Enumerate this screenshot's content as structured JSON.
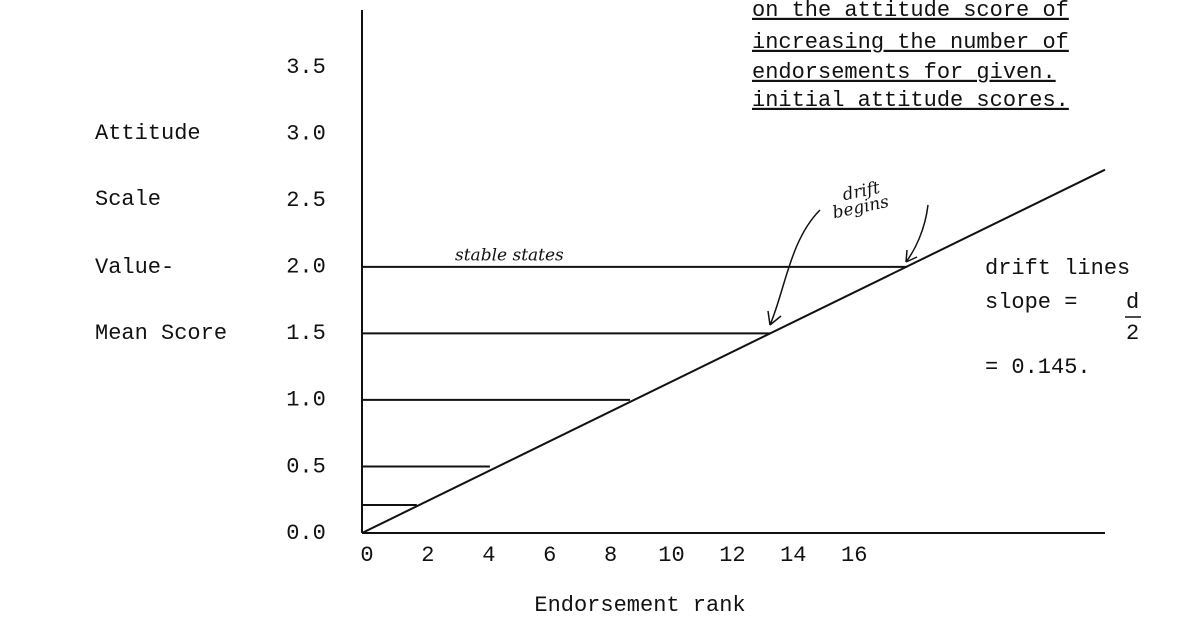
{
  "chart_data": {
    "type": "line",
    "title_lines": [
      "on the attitude score of",
      "increasing the number of",
      "endorsements for given.",
      "initial attitude scores."
    ],
    "y_label_lines": [
      "Attitude",
      "Scale",
      "Value-",
      "Mean Score"
    ],
    "x_label": "Endorsement rank",
    "annotations": [
      "stable states",
      "drift",
      "begins",
      "drift lines",
      "slope = ",
      "d",
      "2",
      "= 0.145."
    ],
    "xlim": [
      0,
      24.4
    ],
    "ylim": [
      0,
      3.9
    ],
    "xticks": [
      0,
      2,
      4,
      6,
      8,
      10,
      12,
      14,
      16
    ],
    "yticks": [
      {
        "value": 0,
        "label": "0.0"
      },
      0.5,
      {
        "value": 1,
        "label": "1.0"
      },
      1.5,
      {
        "value": 2,
        "label": "2.0"
      },
      2.5,
      {
        "value": 3,
        "label": "3.0"
      },
      3.5
    ],
    "series": [
      {
        "color": "#111111",
        "x": [
          0,
          24.4
        ],
        "values": [
          0,
          2.73
        ]
      },
      {
        "color": "#111111",
        "x": [
          0,
          17.9
        ],
        "values": [
          2,
          2
        ]
      },
      {
        "color": "#111111",
        "x": [
          0,
          13.4
        ],
        "values": [
          1.5,
          1.5
        ]
      },
      {
        "color": "#111111",
        "x": [
          0,
          8.8
        ],
        "values": [
          1,
          1
        ]
      },
      {
        "color": "#111111",
        "x": [
          0,
          4.2
        ],
        "values": [
          0.5,
          0.5
        ]
      },
      {
        "color": "#111111",
        "x": [
          0,
          1.8
        ],
        "values": [
          0.21,
          0.21
        ]
      }
    ]
  }
}
